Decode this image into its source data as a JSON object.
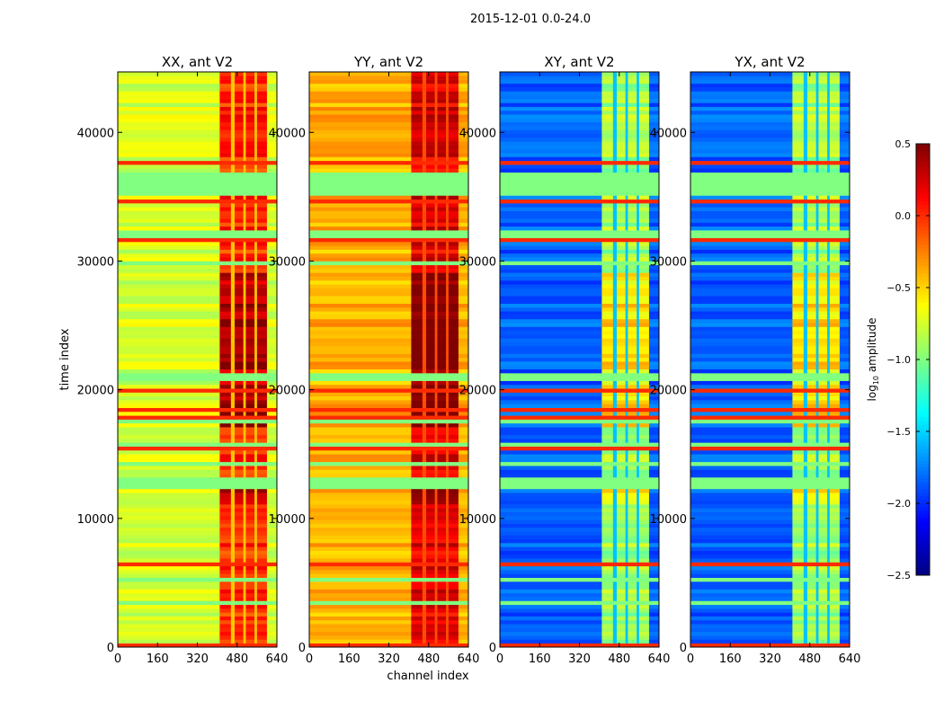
{
  "chart_data": {
    "type": "heatmap",
    "suptitle": "2015-12-01 0.0-24.0",
    "xlabel": "channel index",
    "ylabel": "time index",
    "xlim": [
      0,
      640
    ],
    "ylim": [
      0,
      44700
    ],
    "xticks": [
      "0",
      "160",
      "320",
      "480",
      "640"
    ],
    "yticks": [
      "0",
      "10000",
      "20000",
      "30000",
      "40000"
    ],
    "colorbar": {
      "label": "log10 amplitude",
      "label_main": "log",
      "label_sub": "10",
      "label_rest": " amplitude",
      "range": [
        -2.5,
        0.5
      ],
      "ticks": [
        "0.5",
        "0.0",
        "−0.5",
        "−1.0",
        "−1.5",
        "−2.0",
        "−2.5"
      ],
      "colormap": "jet"
    },
    "panels": [
      {
        "title": "XX, ant V2",
        "base_level": -0.75,
        "rfi_level": 0.0
      },
      {
        "title": "YY, ant V2",
        "base_level": -0.4,
        "rfi_level": 0.2
      },
      {
        "title": "XY, ant V2",
        "base_level": -1.85,
        "rfi_level": -0.9
      },
      {
        "title": "YX, ant V2",
        "base_level": -1.85,
        "rfi_level": -0.9
      }
    ],
    "flagged_band": {
      "time_range": [
        34900,
        36800
      ],
      "level": -1.0
    },
    "rfi_channel_range": [
      410,
      600
    ]
  }
}
